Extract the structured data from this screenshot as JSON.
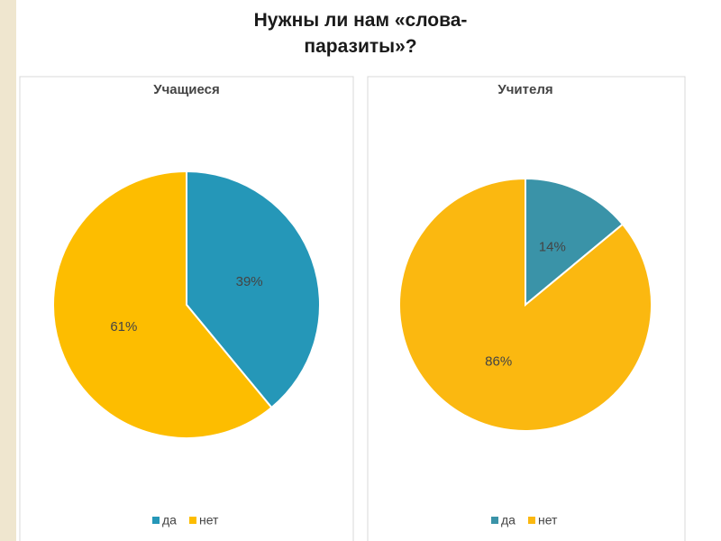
{
  "title": "Нужны ли нам «слова-паразиты»?",
  "chart_data": [
    {
      "type": "pie",
      "title": "Учащиеся",
      "categories": [
        "да",
        "нет"
      ],
      "values": [
        39,
        61
      ],
      "value_labels": [
        "39%",
        "61%"
      ],
      "colors": [
        "#2597b8",
        "#fdbd00"
      ],
      "legend": "bottom"
    },
    {
      "type": "pie",
      "title": "Учителя",
      "categories": [
        "да",
        "нет"
      ],
      "values": [
        14,
        86
      ],
      "value_labels": [
        "14%",
        "86%"
      ],
      "colors": [
        "#3a93a8",
        "#fbb810"
      ],
      "legend": "bottom"
    }
  ]
}
